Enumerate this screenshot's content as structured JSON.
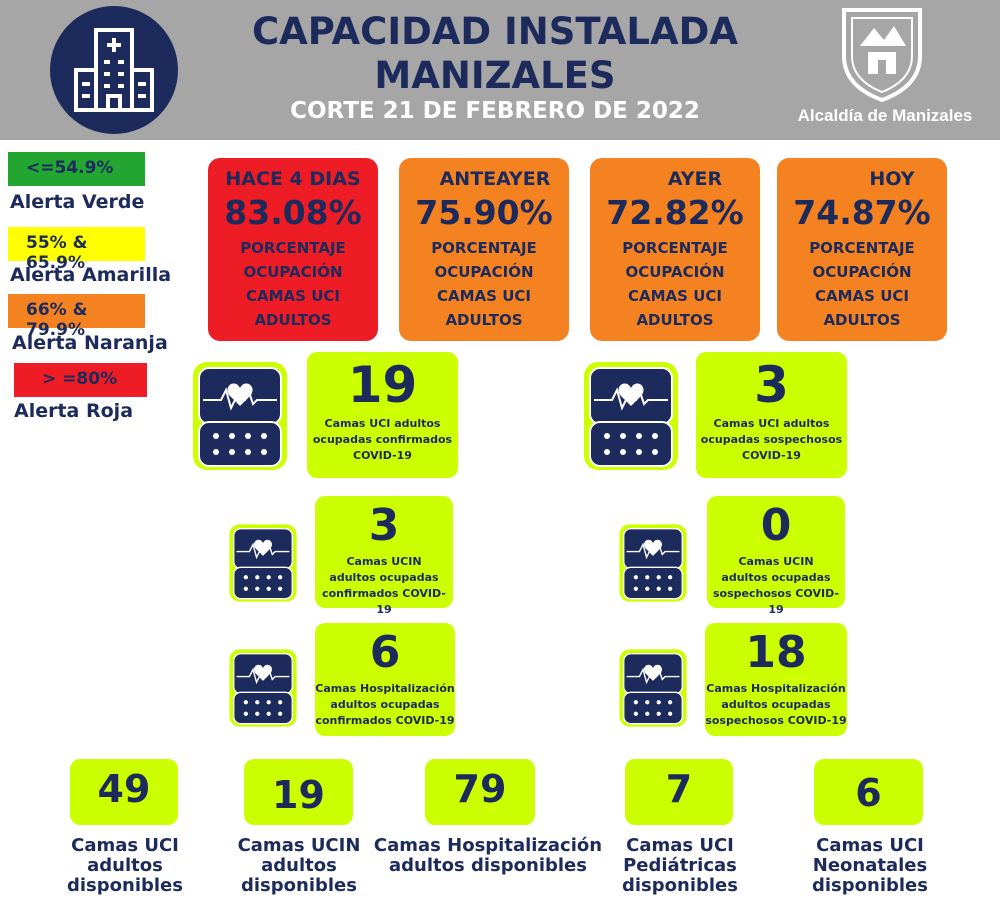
{
  "header": {
    "title_line1": "CAPACIDAD INSTALADA",
    "title_line2": "MANIZALES",
    "subtitle": "CORTE 21 DE FEBRERO DE 2022",
    "logo_text": "Alcaldía de Manizales",
    "icon": "hospital-icon"
  },
  "legend": [
    {
      "range": "<=54.9%",
      "label": "Alerta Verde",
      "color": "#22a531"
    },
    {
      "range": "55% & 65.9%",
      "label": "Alerta Amarilla",
      "color": "#ffff00"
    },
    {
      "range": "66% & 79.9%",
      "label": "Alerta Naranja",
      "color": "#f58220"
    },
    {
      "range": "> =80%",
      "label": "Alerta Roja",
      "color": "#ee1c24"
    }
  ],
  "occupancy": [
    {
      "when": "HACE 4 DIAS",
      "value": "83.08%",
      "color": "#ee1c24",
      "line1": "PORCENTAJE",
      "line2": "OCUPACIÓN",
      "line3": "CAMAS UCI",
      "line4": "ADULTOS"
    },
    {
      "when": "ANTEAYER",
      "value": "75.90%",
      "color": "#f58220",
      "line1": "PORCENTAJE",
      "line2": "OCUPACIÓN",
      "line3": "CAMAS UCI",
      "line4": "ADULTOS"
    },
    {
      "when": "AYER",
      "value": "72.82%",
      "color": "#f58220",
      "line1": "PORCENTAJE",
      "line2": "OCUPACIÓN",
      "line3": "CAMAS UCI",
      "line4": "ADULTOS"
    },
    {
      "when": "HOY",
      "value": "74.87%",
      "color": "#f58220",
      "line1": "PORCENTAJE",
      "line2": "OCUPACIÓN",
      "line3": "CAMAS UCI",
      "line4": "ADULTOS"
    }
  ],
  "cards": {
    "uci_conf": {
      "value": "19",
      "l1": "Camas UCI adultos",
      "l2": "ocupadas confirmados",
      "l3": "COVID-19"
    },
    "uci_sosp": {
      "value": "3",
      "l1": "Camas UCI adultos",
      "l2": "ocupadas sospechosos",
      "l3": "COVID-19"
    },
    "ucin_conf": {
      "value": "3",
      "l1": "Camas  UCIN",
      "l2": "adultos ocupadas",
      "l3": "confirmados COVID-19"
    },
    "ucin_sosp": {
      "value": "0",
      "l1": "Camas  UCIN",
      "l2": "adultos ocupadas",
      "l3": "sospechosos COVID-19"
    },
    "hosp_conf": {
      "value": "6",
      "l1": "Camas  Hospitalización",
      "l2": "adultos ocupadas",
      "l3": "confirmados COVID-19"
    },
    "hosp_sosp": {
      "value": "18",
      "l1": "Camas  Hospitalización",
      "l2": "adultos ocupadas",
      "l3": "sospechosos COVID-19"
    }
  },
  "available": [
    {
      "value": "49",
      "l1": "Camas UCI",
      "l2": "adultos",
      "l3": "disponibles"
    },
    {
      "value": "19",
      "l1": "Camas UCIN",
      "l2": "adultos",
      "l3": "disponibles"
    },
    {
      "value": "79",
      "l1": "Camas  Hospitalización",
      "l2": "adultos disponibles",
      "l3": ""
    },
    {
      "value": "7",
      "l1": "Camas  UCI",
      "l2": "Pediátricas",
      "l3": "disponibles"
    },
    {
      "value": "6",
      "l1": "Camas  UCI",
      "l2": "Neonatales",
      "l3": "disponibles"
    }
  ]
}
